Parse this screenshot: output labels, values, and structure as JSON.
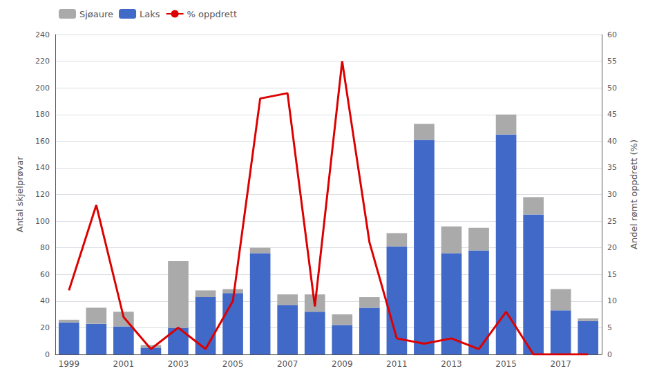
{
  "chart_data": {
    "type": "bar",
    "categories": [
      "1999",
      null,
      "2001",
      null,
      "2003",
      null,
      "2005",
      null,
      "2007",
      null,
      "2009",
      null,
      "2011",
      null,
      "2013",
      null,
      "2015",
      null,
      "2017",
      null
    ],
    "series": [
      {
        "name": "Laks",
        "color": "#4169C8",
        "values": [
          24,
          23,
          21,
          5,
          20,
          43,
          46,
          76,
          37,
          32,
          22,
          35,
          81,
          161,
          76,
          78,
          165,
          105,
          33,
          25
        ]
      },
      {
        "name": "Sjøaure",
        "color": "#AAAAAA",
        "values": [
          2,
          12,
          11,
          2,
          50,
          5,
          3,
          4,
          8,
          13,
          8,
          8,
          10,
          12,
          20,
          17,
          15,
          13,
          16,
          2
        ]
      },
      {
        "name": "% oppdrett",
        "type": "line",
        "axis": "y2",
        "color": "#DD0000",
        "values": [
          12,
          28,
          7,
          1,
          5,
          1,
          10,
          48,
          49,
          9,
          55,
          21,
          3,
          2,
          3,
          1,
          8,
          0,
          0,
          0
        ]
      }
    ],
    "ylabel": "Antal skjelprøvar",
    "y2label": "Andel rømt oppdrett (%)",
    "ylim": [
      0,
      240
    ],
    "yticks": [
      0,
      20,
      40,
      60,
      80,
      100,
      120,
      140,
      160,
      180,
      200,
      220,
      240
    ],
    "y2lim": [
      0,
      60
    ],
    "y2ticks": [
      0,
      5,
      10,
      15,
      20,
      25,
      30,
      35,
      40,
      45,
      50,
      55,
      60
    ],
    "grid": true,
    "legend": "upper left",
    "stacked": true
  }
}
